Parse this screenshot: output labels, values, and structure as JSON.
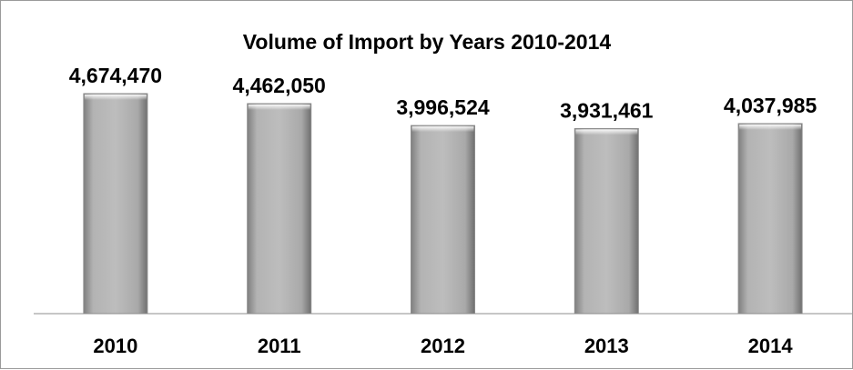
{
  "chart_data": {
    "type": "bar",
    "title": "Volume of Import by Years 2010-2014",
    "categories": [
      "2010",
      "2011",
      "2012",
      "2013",
      "2014"
    ],
    "values": [
      4674470,
      4462050,
      3996524,
      3931461,
      4037985
    ],
    "value_labels": [
      "4,674,470",
      "4,462,050",
      "3,996,524",
      "3,931,461",
      "4,037,985"
    ],
    "ylim": [
      0,
      5000000
    ],
    "grid": false,
    "legend": "none",
    "bar_color": "#a6a6a6"
  }
}
